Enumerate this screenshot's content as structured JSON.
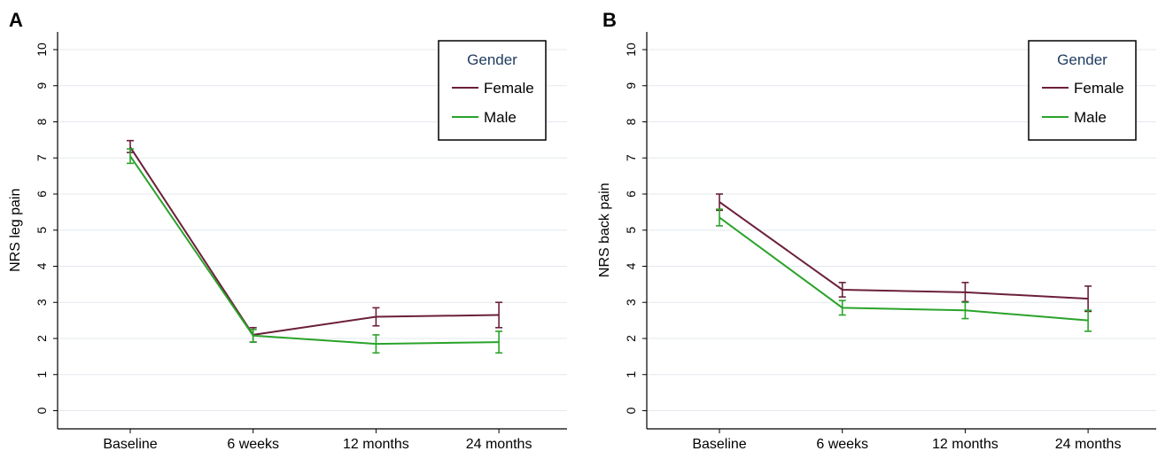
{
  "colors": {
    "female": "#6b1f3a",
    "male": "#2aa32a",
    "grid": "#e3e8ed",
    "axis": "#000000",
    "legend_title": "#1f3a5f"
  },
  "chart_data": [
    {
      "panel_label": "A",
      "type": "line",
      "xlabel": "",
      "ylabel": "NRS leg pain",
      "categories": [
        "Baseline",
        "6 weeks",
        "12 months",
        "24 months"
      ],
      "ylim": [
        0,
        10
      ],
      "yticks": [
        "0",
        "1",
        "2",
        "3",
        "4",
        "5",
        "6",
        "7",
        "8",
        "9",
        "10"
      ],
      "grid": true,
      "legend": {
        "title": "Gender",
        "position": "top-right"
      },
      "error_bars": true,
      "series": [
        {
          "name": "Female",
          "color": "#6b1f3a",
          "values": [
            7.3,
            2.1,
            2.6,
            2.65
          ],
          "lower": [
            7.15,
            1.9,
            2.35,
            2.3
          ],
          "upper": [
            7.48,
            2.3,
            2.85,
            3.0
          ]
        },
        {
          "name": "Male",
          "color": "#2aa32a",
          "values": [
            7.05,
            2.08,
            1.85,
            1.9
          ],
          "lower": [
            6.85,
            1.9,
            1.6,
            1.6
          ],
          "upper": [
            7.25,
            2.25,
            2.1,
            2.2
          ]
        }
      ]
    },
    {
      "panel_label": "B",
      "type": "line",
      "xlabel": "",
      "ylabel": "NRS back pain",
      "categories": [
        "Baseline",
        "6 weeks",
        "12 months",
        "24 months"
      ],
      "ylim": [
        0,
        10
      ],
      "yticks": [
        "0",
        "1",
        "2",
        "3",
        "4",
        "5",
        "6",
        "7",
        "8",
        "9",
        "10"
      ],
      "grid": true,
      "legend": {
        "title": "Gender",
        "position": "top-right"
      },
      "error_bars": true,
      "series": [
        {
          "name": "Female",
          "color": "#6b1f3a",
          "values": [
            5.78,
            3.35,
            3.28,
            3.1
          ],
          "lower": [
            5.55,
            3.15,
            3.02,
            2.75
          ],
          "upper": [
            6.0,
            3.55,
            3.55,
            3.45
          ]
        },
        {
          "name": "Male",
          "color": "#2aa32a",
          "values": [
            5.35,
            2.85,
            2.78,
            2.5
          ],
          "lower": [
            5.12,
            2.65,
            2.55,
            2.2
          ],
          "upper": [
            5.58,
            3.05,
            3.0,
            2.78
          ]
        }
      ]
    }
  ]
}
